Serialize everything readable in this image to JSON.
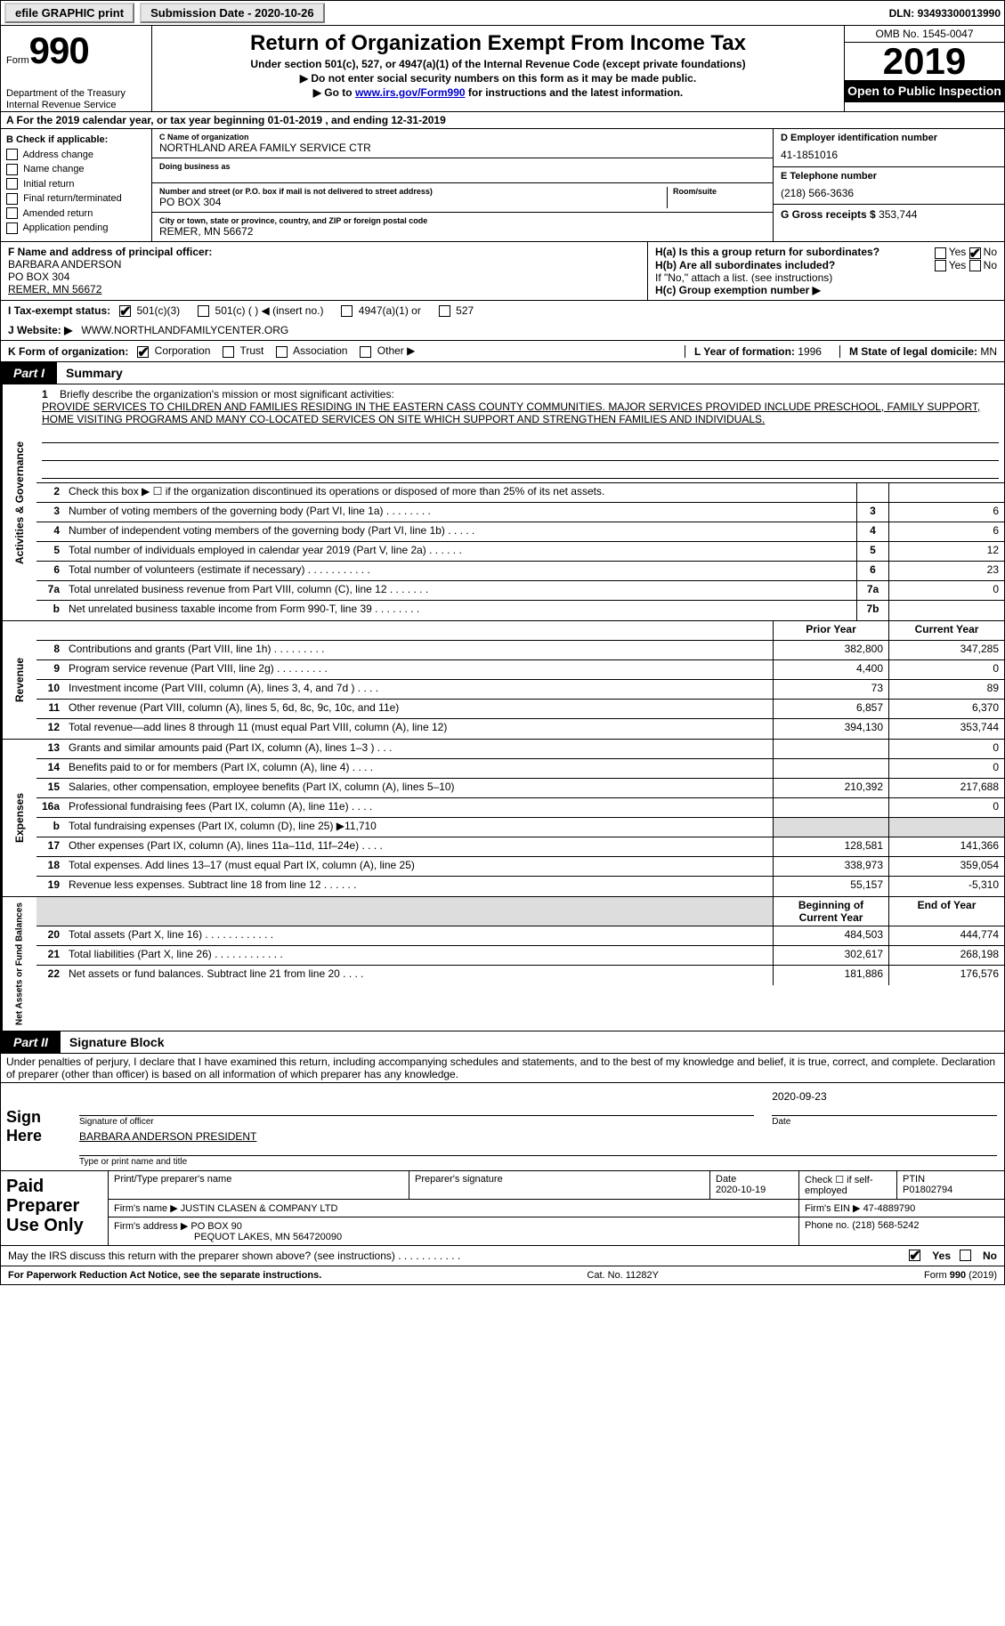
{
  "top": {
    "efile": "efile GRAPHIC print",
    "submission_label": "Submission Date - ",
    "submission_date": "2020-10-26",
    "dln_label": "DLN: ",
    "dln": "93493300013990"
  },
  "header": {
    "form_label": "Form",
    "form_num": "990",
    "title": "Return of Organization Exempt From Income Tax",
    "subtitle": "Under section 501(c), 527, or 4947(a)(1) of the Internal Revenue Code (except private foundations)",
    "note1": "▶ Do not enter social security numbers on this form as it may be made public.",
    "note2_pre": "▶ Go to ",
    "note2_link": "www.irs.gov/Form990",
    "note2_post": " for instructions and the latest information.",
    "dept1": "Department of the Treasury",
    "dept2": "Internal Revenue Service",
    "omb": "OMB No. 1545-0047",
    "year": "2019",
    "open": "Open to Public Inspection"
  },
  "lineA": "A For the 2019 calendar year, or tax year beginning 01-01-2019     , and ending 12-31-2019",
  "boxB": {
    "hdr": "B Check if applicable:",
    "items": [
      "Address change",
      "Name change",
      "Initial return",
      "Final return/terminated",
      "Amended return",
      "Application pending"
    ],
    "checked": [
      false,
      false,
      false,
      false,
      false,
      false
    ]
  },
  "boxC": {
    "name_lbl": "C Name of organization",
    "name": "NORTHLAND AREA FAMILY SERVICE CTR",
    "dba_lbl": "Doing business as",
    "dba": "",
    "addr_lbl": "Number and street (or P.O. box if mail is not delivered to street address)",
    "room_lbl": "Room/suite",
    "addr": "PO BOX 304",
    "city_lbl": "City or town, state or province, country, and ZIP or foreign postal code",
    "city": "REMER, MN  56672"
  },
  "boxD": {
    "ein_lbl": "D Employer identification number",
    "ein": "41-1851016",
    "tel_lbl": "E Telephone number",
    "tel": "(218) 566-3636",
    "gross_lbl": "G Gross receipts $ ",
    "gross": "353,744"
  },
  "boxF": {
    "lbl": "F  Name and address of principal officer:",
    "name": "BARBARA ANDERSON",
    "addr1": "PO BOX 304",
    "addr2": "REMER, MN  56672"
  },
  "boxH": {
    "ha_lbl": "H(a)  Is this a group return for subordinates?",
    "ha_yes": "Yes",
    "ha_no": "No",
    "ha_checked": "no",
    "hb_lbl": "H(b)  Are all subordinates included?",
    "hb_yes": "Yes",
    "hb_no": "No",
    "hb_note": "If \"No,\" attach a list. (see instructions)",
    "hc_lbl": "H(c)  Group exemption number ▶"
  },
  "rowI": {
    "lbl": "I     Tax-exempt status:",
    "opts": [
      "501(c)(3)",
      "501(c) (   ) ◀ (insert no.)",
      "4947(a)(1) or",
      "527"
    ],
    "checked": 0
  },
  "rowJ": {
    "lbl": "J     Website: ▶",
    "val": "WWW.NORTHLANDFAMILYCENTER.ORG"
  },
  "rowK": {
    "lbl": "K Form of organization:",
    "opts": [
      "Corporation",
      "Trust",
      "Association",
      "Other ▶"
    ],
    "checked": 0,
    "L_lbl": "L Year of formation: ",
    "L_val": "1996",
    "M_lbl": "M State of legal domicile: ",
    "M_val": "MN"
  },
  "part1": {
    "num": "Part I",
    "title": "Summary"
  },
  "mission": {
    "q1_lbl": "1",
    "q1_text": "Briefly describe the organization's mission or most significant activities:",
    "q1_body": "PROVIDE SERVICES TO CHILDREN AND FAMILIES RESIDING IN THE EASTERN CASS COUNTY COMMUNITIES. MAJOR SERVICES PROVIDED INCLUDE PRESCHOOL, FAMILY SUPPORT, HOME VISITING PROGRAMS AND MANY CO-LOCATED SERVICES ON SITE WHICH SUPPORT AND STRENGTHEN FAMILIES AND INDIVIDUALS."
  },
  "gov_side": "Activities & Governance",
  "gov_rows": [
    {
      "n": "2",
      "d": "Check this box ▶ ☐  if the organization discontinued its operations or disposed of more than 25% of its net assets.",
      "box": "",
      "v": ""
    },
    {
      "n": "3",
      "d": "Number of voting members of the governing body (Part VI, line 1a)   .    .    .    .    .    .    .    .",
      "box": "3",
      "v": "6"
    },
    {
      "n": "4",
      "d": "Number of independent voting members of the governing body (Part VI, line 1b)   .    .    .    .    .",
      "box": "4",
      "v": "6"
    },
    {
      "n": "5",
      "d": "Total number of individuals employed in calendar year 2019 (Part V, line 2a)   .    .    .    .    .    .",
      "box": "5",
      "v": "12"
    },
    {
      "n": "6",
      "d": "Total number of volunteers (estimate if necessary)   .    .    .    .    .    .    .    .    .    .    .",
      "box": "6",
      "v": "23"
    },
    {
      "n": "7a",
      "d": "Total unrelated business revenue from Part VIII, column (C), line 12   .    .    .    .    .    .    .",
      "box": "7a",
      "v": "0"
    },
    {
      "n": "b",
      "d": "Net unrelated business taxable income from Form 990-T, line 39   .    .    .    .    .    .    .    .",
      "box": "7b",
      "v": ""
    }
  ],
  "rev_side": "Revenue",
  "rev_hdr": {
    "prior": "Prior Year",
    "curr": "Current Year"
  },
  "rev_rows": [
    {
      "n": "8",
      "d": "Contributions and grants (Part VIII, line 1h)   .    .    .    .    .    .    .    .    .",
      "p": "382,800",
      "c": "347,285"
    },
    {
      "n": "9",
      "d": "Program service revenue (Part VIII, line 2g)   .    .    .    .    .    .    .    .    .",
      "p": "4,400",
      "c": "0"
    },
    {
      "n": "10",
      "d": "Investment income (Part VIII, column (A), lines 3, 4, and 7d )   .    .    .    .",
      "p": "73",
      "c": "89"
    },
    {
      "n": "11",
      "d": "Other revenue (Part VIII, column (A), lines 5, 6d, 8c, 9c, 10c, and 11e)",
      "p": "6,857",
      "c": "6,370"
    },
    {
      "n": "12",
      "d": "Total revenue—add lines 8 through 11 (must equal Part VIII, column (A), line 12)",
      "p": "394,130",
      "c": "353,744"
    }
  ],
  "exp_side": "Expenses",
  "exp_rows": [
    {
      "n": "13",
      "d": "Grants and similar amounts paid (Part IX, column (A), lines 1–3 )  .    .    .",
      "p": "",
      "c": "0"
    },
    {
      "n": "14",
      "d": "Benefits paid to or for members (Part IX, column (A), line 4)  .    .    .    .",
      "p": "",
      "c": "0"
    },
    {
      "n": "15",
      "d": "Salaries, other compensation, employee benefits (Part IX, column (A), lines 5–10)",
      "p": "210,392",
      "c": "217,688"
    },
    {
      "n": "16a",
      "d": "Professional fundraising fees (Part IX, column (A), line 11e)   .    .    .    .",
      "p": "",
      "c": "0"
    },
    {
      "n": "b",
      "d": "Total fundraising expenses (Part IX, column (D), line 25) ▶11,710",
      "p": "",
      "c": "",
      "shade": true
    },
    {
      "n": "17",
      "d": "Other expenses (Part IX, column (A), lines 11a–11d, 11f–24e)   .    .    .    .",
      "p": "128,581",
      "c": "141,366"
    },
    {
      "n": "18",
      "d": "Total expenses. Add lines 13–17 (must equal Part IX, column (A), line 25)",
      "p": "338,973",
      "c": "359,054"
    },
    {
      "n": "19",
      "d": "Revenue less expenses. Subtract line 18 from line 12   .    .    .    .    .    .",
      "p": "55,157",
      "c": "-5,310"
    }
  ],
  "net_side": "Net Assets or Fund Balances",
  "net_hdr": {
    "prior": "Beginning of Current Year",
    "curr": "End of Year"
  },
  "net_rows": [
    {
      "n": "20",
      "d": "Total assets (Part X, line 16)   .    .    .    .    .    .    .    .    .    .    .    .",
      "p": "484,503",
      "c": "444,774"
    },
    {
      "n": "21",
      "d": "Total liabilities (Part X, line 26)  .    .    .    .    .    .    .    .    .    .    .    .",
      "p": "302,617",
      "c": "268,198"
    },
    {
      "n": "22",
      "d": "Net assets or fund balances. Subtract line 21 from line 20   .    .    .    .",
      "p": "181,886",
      "c": "176,576"
    }
  ],
  "part2": {
    "num": "Part II",
    "title": "Signature Block"
  },
  "sig_decl": "Under penalties of perjury, I declare that I have examined this return, including accompanying schedules and statements, and to the best of my knowledge and belief, it is true, correct, and complete. Declaration of preparer (other than officer) is based on all information of which preparer has any knowledge.",
  "sign": {
    "here": "Sign Here",
    "sig_lbl": "Signature of officer",
    "date": "2020-09-23",
    "date_lbl": "Date",
    "name": "BARBARA ANDERSON PRESIDENT",
    "name_lbl": "Type or print name and title"
  },
  "paid": {
    "here": "Paid Preparer Use Only",
    "h1": "Print/Type preparer's name",
    "h2": "Preparer's signature",
    "h3": "Date",
    "h3v": "2020-10-19",
    "h4": "Check ☐ if self-employed",
    "h5": "PTIN",
    "h5v": "P01802794",
    "firm_lbl": "Firm's name    ▶",
    "firm": "JUSTIN CLASEN & COMPANY LTD",
    "ein_lbl": "Firm's EIN ▶",
    "ein": "47-4889790",
    "addr_lbl": "Firm's address ▶",
    "addr1": "PO BOX 90",
    "addr2": "PEQUOT LAKES, MN  564720090",
    "phone_lbl": "Phone no. ",
    "phone": "(218) 568-5242"
  },
  "discuss": {
    "q": "May the IRS discuss this return with the preparer shown above? (see instructions)   .    .    .    .    .    .    .    .    .    .    .",
    "yes": "Yes",
    "no": "No",
    "checked": "yes"
  },
  "footer": {
    "left": "For Paperwork Reduction Act Notice, see the separate instructions.",
    "mid": "Cat. No. 11282Y",
    "right": "Form 990 (2019)"
  }
}
